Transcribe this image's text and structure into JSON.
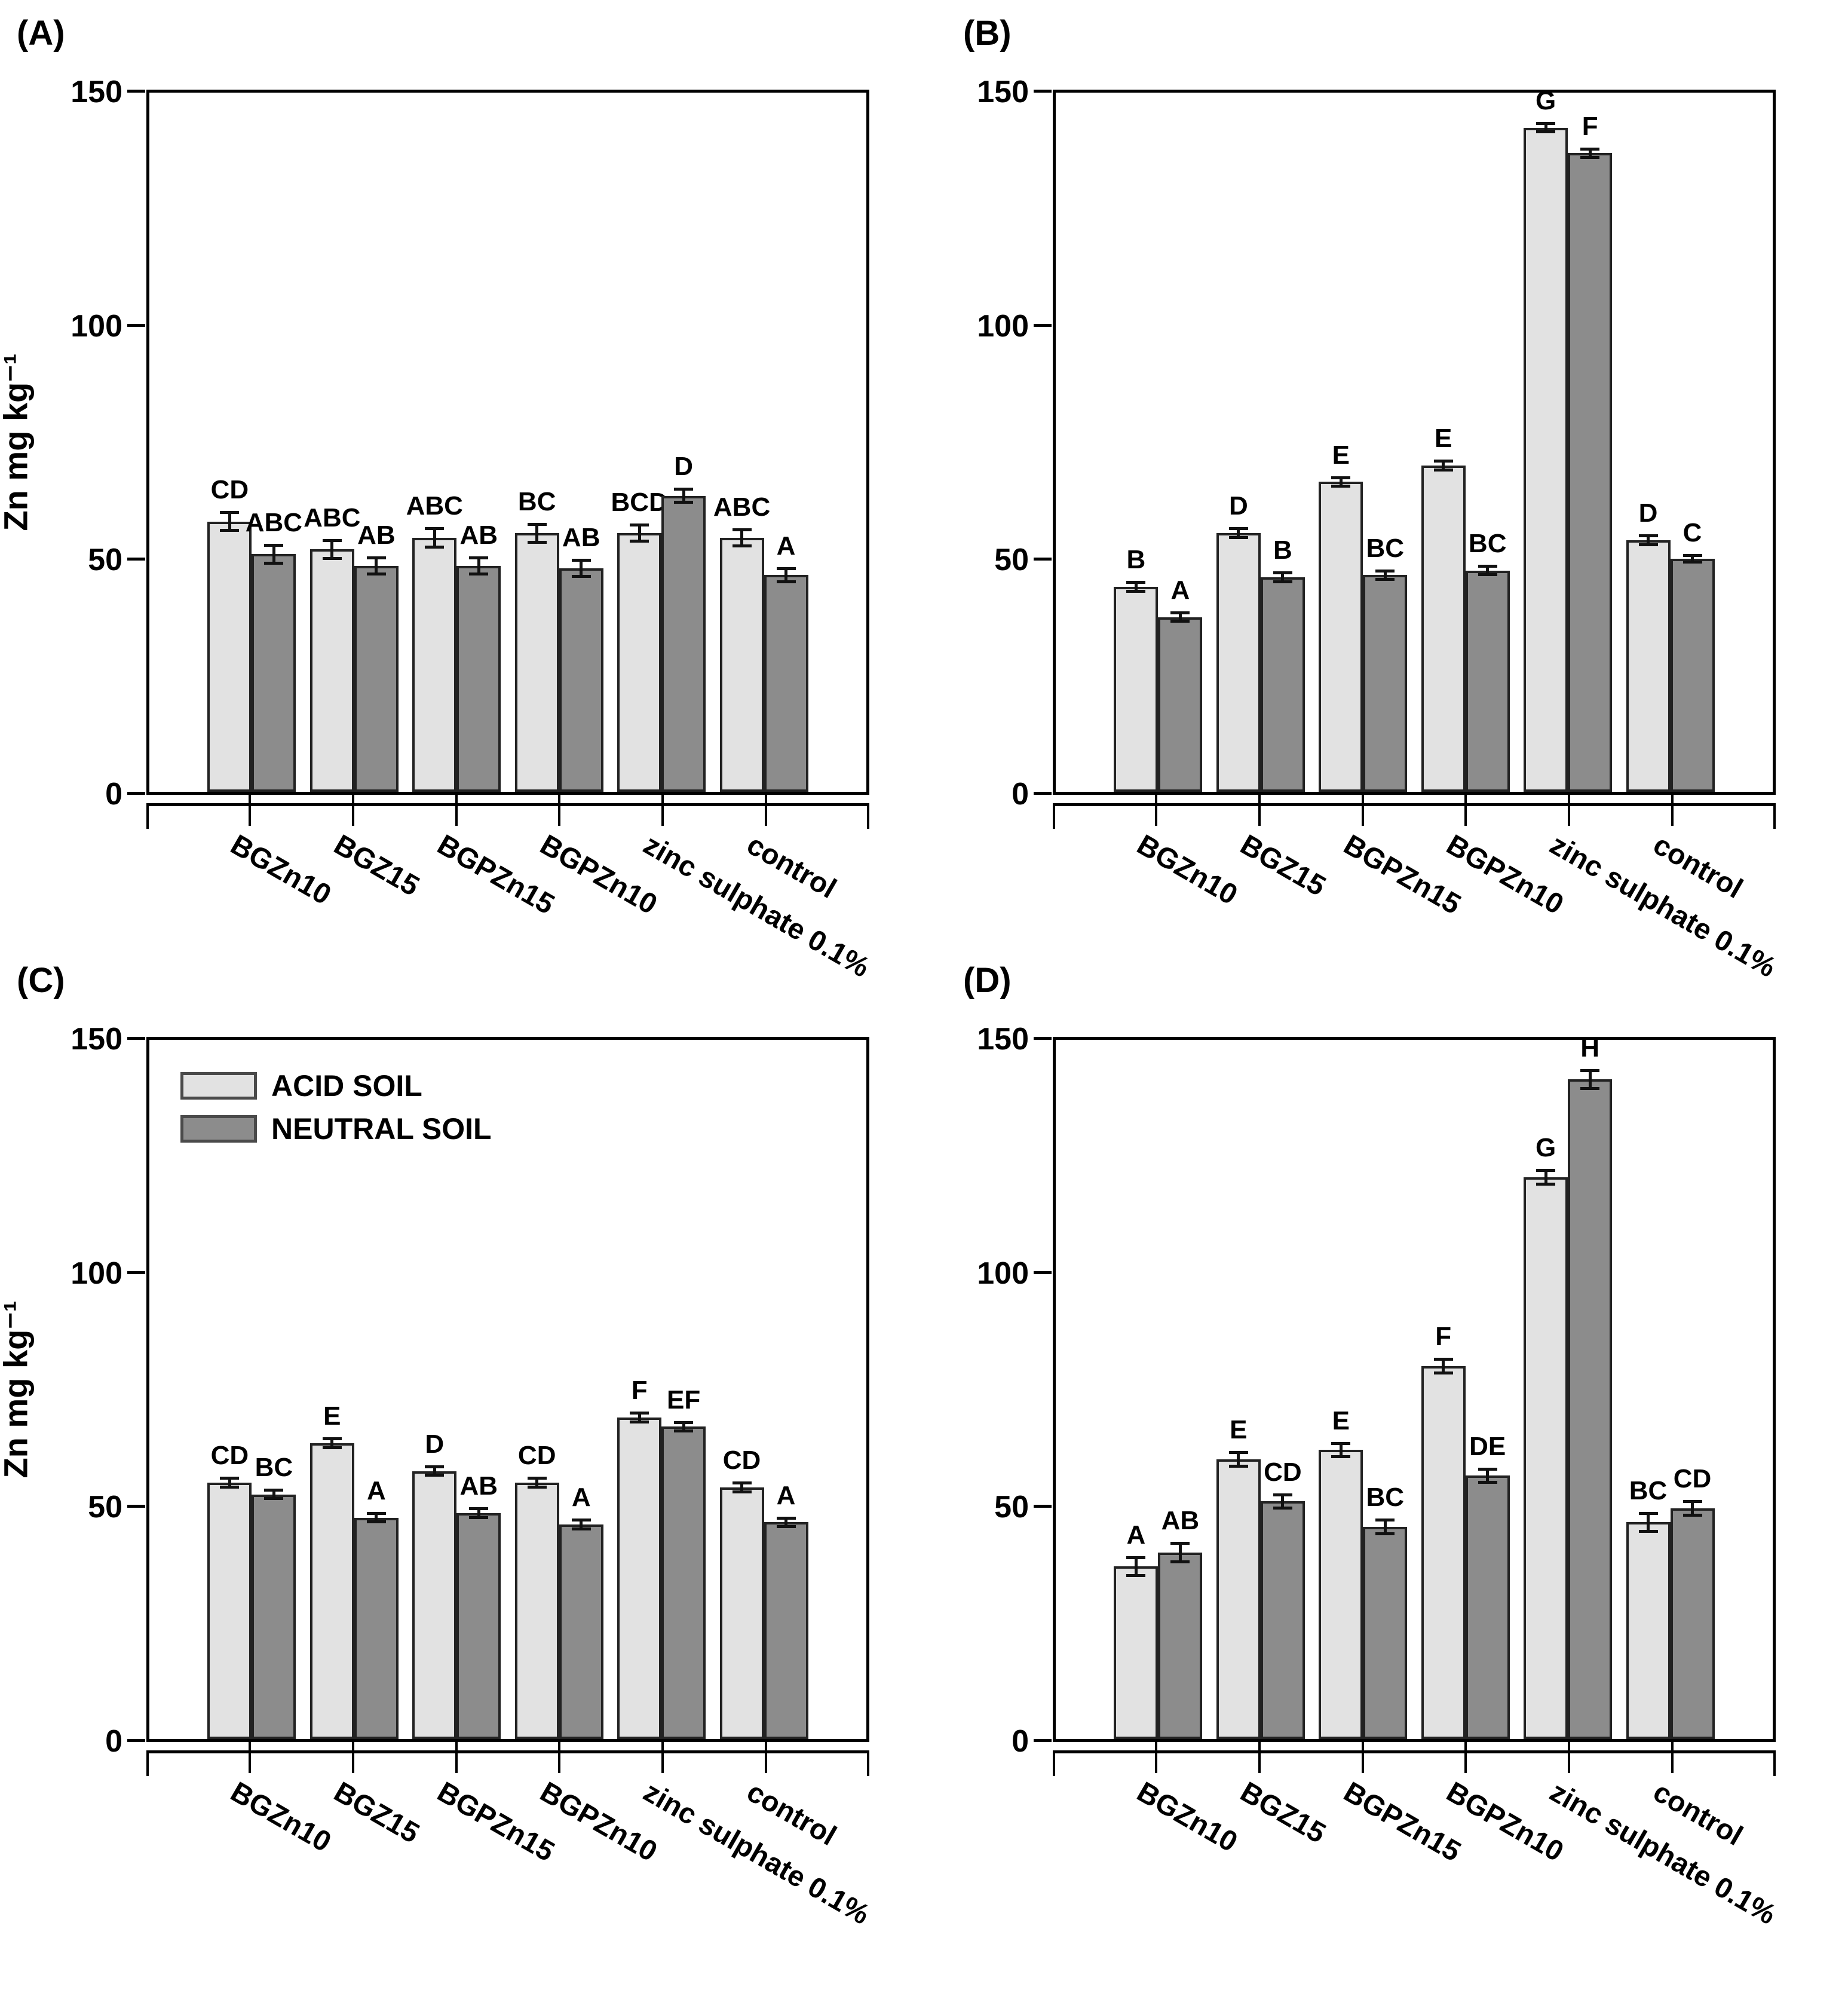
{
  "figure": {
    "background": "#ffffff",
    "axis_color": "#000000",
    "bar_border_color": "#222222",
    "error_bar_color": "#111111",
    "legend": {
      "acid_label": "ACID SOIL",
      "neutral_label": "NEUTRAL SOIL"
    },
    "y_axis_title": "Zn mg kg⁻¹"
  },
  "chart_data": [
    {
      "panel": "(A)",
      "type": "bar",
      "title": "",
      "ylabel": "Zn mg kg⁻¹",
      "ylim": [
        0,
        150
      ],
      "yticks": [
        0,
        50,
        100,
        150
      ],
      "grid": false,
      "legend_visible": false,
      "legend_position": "top-left-inside",
      "categories": [
        "BGZn10",
        "BGZ15",
        "BGPZn15",
        "BGPZn10",
        "zinc sulphate 0.1%",
        "control"
      ],
      "series": [
        {
          "name": "ACID SOIL",
          "color": "#e2e2e2",
          "values": [
            58,
            52,
            54.5,
            55.5,
            55.5,
            54.5
          ],
          "errors": [
            2,
            2,
            2,
            2,
            1.8,
            1.8
          ],
          "letters": [
            "CD",
            "ABC",
            "ABC",
            "BC",
            "BCD",
            "ABC"
          ]
        },
        {
          "name": "NEUTRAL SOIL",
          "color": "#8c8c8c",
          "values": [
            51,
            48.5,
            48.5,
            48,
            63.5,
            46.5
          ],
          "errors": [
            2,
            1.8,
            1.8,
            1.8,
            1.5,
            1.5
          ],
          "letters": [
            "ABC",
            "AB",
            "AB",
            "AB",
            "D",
            "A"
          ]
        }
      ]
    },
    {
      "panel": "(B)",
      "type": "bar",
      "title": "",
      "ylabel": "",
      "ylim": [
        0,
        150
      ],
      "yticks": [
        0,
        50,
        100,
        150
      ],
      "grid": false,
      "legend_visible": false,
      "legend_position": "none",
      "categories": [
        "BGZn10",
        "BGZ15",
        "BGPZn15",
        "BGPZn10",
        "zinc sulphate 0.1%",
        "control"
      ],
      "series": [
        {
          "name": "ACID SOIL",
          "color": "#e2e2e2",
          "values": [
            44,
            55.5,
            66.5,
            70,
            142.5,
            54
          ],
          "errors": [
            1,
            1,
            1,
            1,
            1,
            1
          ],
          "letters": [
            "B",
            "D",
            "E",
            "E",
            "G",
            "D"
          ]
        },
        {
          "name": "NEUTRAL SOIL",
          "color": "#8c8c8c",
          "values": [
            37.5,
            46,
            46.5,
            47.5,
            137,
            50
          ],
          "errors": [
            1,
            1,
            1,
            1,
            1,
            0.8
          ],
          "letters": [
            "A",
            "B",
            "BC",
            "BC",
            "F",
            "C"
          ]
        }
      ]
    },
    {
      "panel": "(C)",
      "type": "bar",
      "title": "",
      "ylabel": "Zn mg kg⁻¹",
      "ylim": [
        0,
        150
      ],
      "yticks": [
        0,
        50,
        100,
        150
      ],
      "grid": false,
      "legend_visible": true,
      "legend_position": "top-left-inside",
      "categories": [
        "BGZn10",
        "BGZ15",
        "BGPZn15",
        "BGPZn10",
        "zinc sulphate 0.1%",
        "control"
      ],
      "series": [
        {
          "name": "ACID SOIL",
          "color": "#e2e2e2",
          "values": [
            55,
            63.5,
            57.5,
            55,
            69,
            54
          ],
          "errors": [
            1,
            1,
            1,
            1,
            1,
            1
          ],
          "letters": [
            "CD",
            "E",
            "D",
            "CD",
            "F",
            "CD"
          ]
        },
        {
          "name": "NEUTRAL SOIL",
          "color": "#8c8c8c",
          "values": [
            52.5,
            47.5,
            48.5,
            46,
            67,
            46.5
          ],
          "errors": [
            1,
            1,
            1,
            1,
            1,
            1
          ],
          "letters": [
            "BC",
            "A",
            "AB",
            "A",
            "EF",
            "A"
          ]
        }
      ]
    },
    {
      "panel": "(D)",
      "type": "bar",
      "title": "",
      "ylabel": "",
      "ylim": [
        0,
        150
      ],
      "yticks": [
        0,
        50,
        100,
        150
      ],
      "grid": false,
      "legend_visible": false,
      "legend_position": "none",
      "categories": [
        "BGZn10",
        "BGZ15",
        "BGPZn15",
        "BGPZn10",
        "zinc sulphate 0.1%",
        "control"
      ],
      "series": [
        {
          "name": "ACID SOIL",
          "color": "#e2e2e2",
          "values": [
            37,
            60,
            62,
            80,
            120.5,
            46.5
          ],
          "errors": [
            2,
            1.5,
            1.5,
            1.5,
            1.5,
            2
          ],
          "letters": [
            "A",
            "E",
            "E",
            "F",
            "G",
            "BC"
          ]
        },
        {
          "name": "NEUTRAL SOIL",
          "color": "#8c8c8c",
          "values": [
            40,
            51,
            45.5,
            56.5,
            141.5,
            49.5
          ],
          "errors": [
            2,
            1.5,
            1.5,
            1.5,
            2,
            1.5
          ],
          "letters": [
            "AB",
            "CD",
            "BC",
            "DE",
            "H",
            "CD"
          ]
        }
      ]
    }
  ]
}
